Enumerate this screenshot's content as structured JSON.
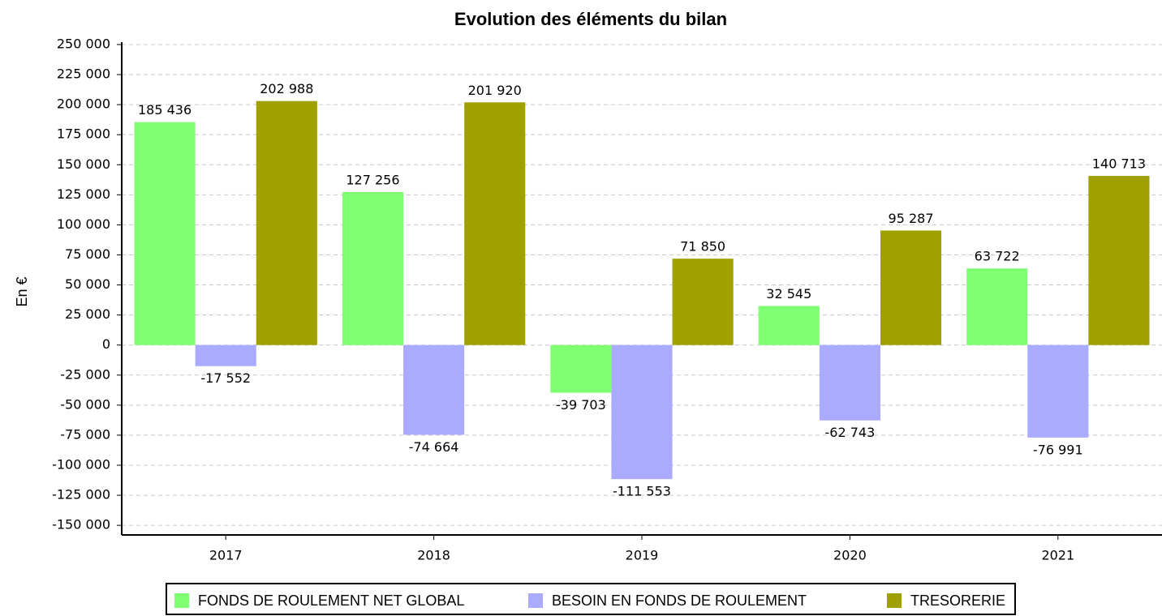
{
  "chart_data": {
    "type": "bar",
    "title": "Evolution des éléments du bilan",
    "y_label": "En €",
    "categories": [
      "2017",
      "2018",
      "2019",
      "2020",
      "2021"
    ],
    "series": [
      {
        "name": "FONDS DE ROULEMENT NET GLOBAL",
        "color": "#80ff73",
        "values": [
          185436,
          127256,
          -39703,
          32545,
          63722
        ],
        "value_labels": [
          "185 436",
          "127 256",
          "-39 703",
          "32 545",
          "63 722"
        ]
      },
      {
        "name": "BESOIN EN FONDS DE ROULEMENT",
        "color": "#aaaaff",
        "values": [
          -17552,
          -74664,
          -111553,
          -62743,
          -76991
        ],
        "value_labels": [
          "-17 552",
          "-74 664",
          "-111 553",
          "-62 743",
          "-76 991"
        ]
      },
      {
        "name": "TRESORERIE",
        "color": "#a0a000",
        "values": [
          202988,
          201920,
          71850,
          95287,
          140713
        ],
        "value_labels": [
          "202 988",
          "201 920",
          "71 850",
          "95 287",
          "140 713"
        ]
      }
    ],
    "ylim": [
      -158000,
      252000
    ],
    "yticks": [
      {
        "value": 250000,
        "label": "250 000"
      },
      {
        "value": 225000,
        "label": "225 000"
      },
      {
        "value": 200000,
        "label": "200 000"
      },
      {
        "value": 175000,
        "label": "175 000"
      },
      {
        "value": 150000,
        "label": "150 000"
      },
      {
        "value": 125000,
        "label": "125 000"
      },
      {
        "value": 100000,
        "label": "100 000"
      },
      {
        "value": 75000,
        "label": "75 000"
      },
      {
        "value": 50000,
        "label": "50 000"
      },
      {
        "value": 25000,
        "label": "25 000"
      },
      0,
      {
        "value": -25000,
        "label": "-25 000"
      },
      {
        "value": -50000,
        "label": "-50 000"
      },
      {
        "value": -75000,
        "label": "-75 000"
      },
      {
        "value": -100000,
        "label": "-100 000"
      },
      {
        "value": -125000,
        "label": "-125 000"
      },
      {
        "value": -150000,
        "label": "-150 000"
      }
    ],
    "grid": true
  }
}
